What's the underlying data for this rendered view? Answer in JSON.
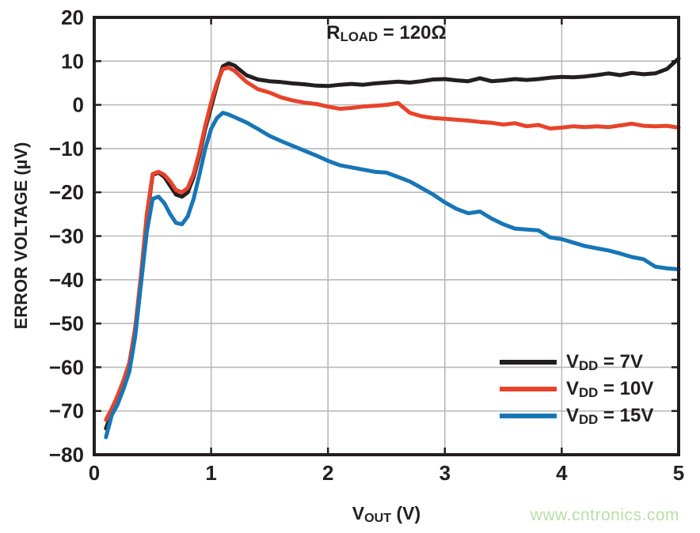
{
  "watermark": "www.cntronics.com",
  "annotation": {
    "prefix": "R",
    "sub": "LOAD",
    "rest": " = 120Ω"
  },
  "axes": {
    "y_label": "ERROR VOLTAGE (µV)",
    "x_label": {
      "prefix": "V",
      "sub": "OUT",
      "rest": " (V)"
    }
  },
  "legend": [
    {
      "prefix": "V",
      "sub": "DD",
      "rest": " = 7V"
    },
    {
      "prefix": "V",
      "sub": "DD",
      "rest": " = 10V"
    },
    {
      "prefix": "V",
      "sub": "DD",
      "rest": " = 15V"
    }
  ],
  "chart_data": {
    "type": "line",
    "title": "R_LOAD = 120Ω",
    "xlabel": "V_OUT (V)",
    "ylabel": "ERROR VOLTAGE (µV)",
    "xlim": [
      0,
      5
    ],
    "ylim": [
      -80,
      20
    ],
    "grid": true,
    "legend_position": "lower right",
    "axis_color": "#231f20",
    "grid_color": "#b9b9b9",
    "xticks": [
      0,
      1,
      2,
      3,
      4,
      5
    ],
    "xtick_labels": [
      "0",
      "1",
      "2",
      "3",
      "4",
      "5"
    ],
    "yticks": [
      20,
      10,
      0,
      -10,
      -20,
      -30,
      -40,
      -50,
      -60,
      -70,
      -80
    ],
    "ytick_labels": [
      "20",
      "10",
      "0",
      "−10",
      "−20",
      "−30",
      "−40",
      "−50",
      "−60",
      "−70",
      "−80"
    ],
    "x": [
      0.1,
      0.15,
      0.2,
      0.25,
      0.3,
      0.35,
      0.4,
      0.45,
      0.5,
      0.55,
      0.6,
      0.65,
      0.7,
      0.75,
      0.8,
      0.85,
      0.9,
      0.95,
      1.0,
      1.05,
      1.1,
      1.15,
      1.2,
      1.3,
      1.4,
      1.5,
      1.6,
      1.7,
      1.8,
      1.9,
      2.0,
      2.1,
      2.2,
      2.3,
      2.4,
      2.5,
      2.6,
      2.7,
      2.8,
      2.9,
      3.0,
      3.1,
      3.2,
      3.3,
      3.4,
      3.5,
      3.6,
      3.7,
      3.8,
      3.9,
      4.0,
      4.1,
      4.2,
      4.3,
      4.4,
      4.5,
      4.6,
      4.7,
      4.8,
      4.9,
      5.0
    ],
    "series": [
      {
        "name": "VDD = 7V",
        "color": "#231f20",
        "values": [
          -74,
          -70.5,
          -67.5,
          -64,
          -60,
          -52,
          -40,
          -26,
          -16,
          -15.5,
          -16.5,
          -18.5,
          -20.5,
          -21,
          -20,
          -16.5,
          -11.5,
          -5.5,
          -0.5,
          4.5,
          8.8,
          9.5,
          9,
          6.8,
          5.8,
          5.4,
          5.2,
          4.9,
          4.7,
          4.4,
          4.3,
          4.6,
          4.8,
          4.6,
          4.9,
          5.1,
          5.3,
          5.1,
          5.4,
          5.8,
          5.9,
          5.6,
          5.4,
          6.1,
          5.4,
          5.6,
          5.9,
          5.7,
          5.9,
          6.2,
          6.4,
          6.3,
          6.5,
          6.8,
          7.2,
          6.8,
          7.3,
          7,
          7.2,
          8.2,
          10.6
        ]
      },
      {
        "name": "VDD = 10V",
        "color": "#e8432a",
        "values": [
          -72,
          -69.5,
          -66.5,
          -63,
          -59,
          -51,
          -39,
          -25,
          -15.8,
          -15.3,
          -16,
          -17.5,
          -19.5,
          -20,
          -19,
          -15.8,
          -10.8,
          -4.8,
          0.5,
          5,
          8.2,
          8.5,
          7.8,
          5.3,
          3.6,
          2.8,
          1.7,
          1,
          0.5,
          0.2,
          -0.4,
          -0.9,
          -0.7,
          -0.4,
          -0.2,
          0,
          0.4,
          -1.8,
          -2.6,
          -3,
          -3.2,
          -3.4,
          -3.6,
          -3.9,
          -4.1,
          -4.5,
          -4.2,
          -4.9,
          -4.6,
          -5.4,
          -5.2,
          -4.9,
          -5.1,
          -4.9,
          -5.1,
          -4.7,
          -4.3,
          -4.8,
          -4.9,
          -4.8,
          -5.2
        ]
      },
      {
        "name": "VDD = 15V",
        "color": "#1776b6",
        "values": [
          -76,
          -71,
          -68.5,
          -65,
          -61,
          -53,
          -41,
          -29,
          -21.5,
          -21,
          -22.5,
          -25,
          -27,
          -27.3,
          -25.5,
          -21.5,
          -16,
          -10,
          -5.5,
          -3,
          -1.8,
          -2.2,
          -2.8,
          -4,
          -5.5,
          -7.1,
          -8.3,
          -9.4,
          -10.5,
          -11.6,
          -12.8,
          -13.8,
          -14.3,
          -14.8,
          -15.3,
          -15.5,
          -16.5,
          -17.5,
          -19,
          -20.5,
          -22.3,
          -23.8,
          -24.8,
          -24.4,
          -26,
          -27.3,
          -28.3,
          -28.5,
          -28.7,
          -30.3,
          -30.7,
          -31.5,
          -32.3,
          -32.8,
          -33.3,
          -34,
          -34.8,
          -35.3,
          -37,
          -37.4,
          -37.6
        ]
      }
    ]
  }
}
